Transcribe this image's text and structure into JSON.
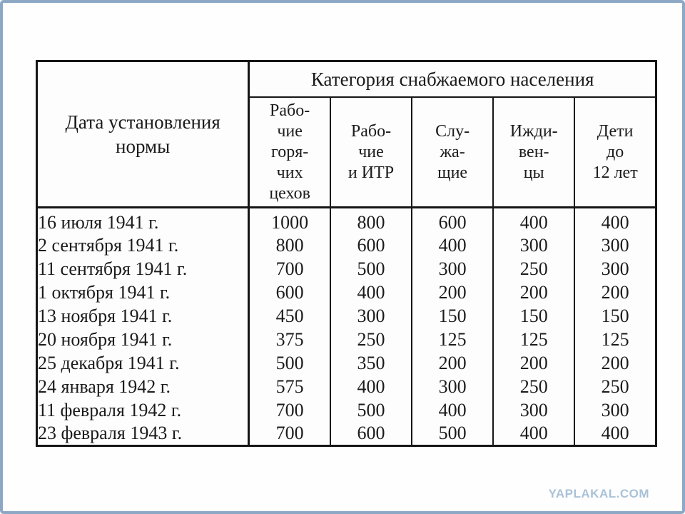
{
  "frame": {
    "border_color": "#8ca8c4",
    "background": "#fefefe"
  },
  "table": {
    "header": {
      "date_col": "Дата установления\nнормы",
      "category_group": "Категория снабжаемого населения",
      "columns": [
        "Рабо-\nчие\nгоря-\nчих\nцехов",
        "Рабо-\nчие\nи ИТР",
        "Слу-\nжа-\nщие",
        "Ижди-\nвен-\nцы",
        "Дети\nдо\n12 лет"
      ]
    },
    "rows": [
      {
        "date": "16 июля 1941 г.",
        "values": [
          "1000",
          "800",
          "600",
          "400",
          "400"
        ]
      },
      {
        "date": "2 сентября 1941 г.",
        "values": [
          "800",
          "600",
          "400",
          "300",
          "300"
        ]
      },
      {
        "date": "11 сентября 1941 г.",
        "values": [
          "700",
          "500",
          "300",
          "250",
          "300"
        ]
      },
      {
        "date": "1 октября 1941 г.",
        "values": [
          "600",
          "400",
          "200",
          "200",
          "200"
        ]
      },
      {
        "date": "13 ноября 1941 г.",
        "values": [
          "450",
          "300",
          "150",
          "150",
          "150"
        ]
      },
      {
        "date": "20 ноября 1941 г.",
        "values": [
          "375",
          "250",
          "125",
          "125",
          "125"
        ]
      },
      {
        "date": "25 декабря 1941 г.",
        "values": [
          "500",
          "350",
          "200",
          "200",
          "200"
        ]
      },
      {
        "date": "24 января 1942 г.",
        "values": [
          "575",
          "400",
          "300",
          "250",
          "250"
        ]
      },
      {
        "date": "11 февраля 1942 г.",
        "values": [
          "700",
          "500",
          "400",
          "300",
          "300"
        ]
      },
      {
        "date": "23 февраля 1943 г.",
        "values": [
          "700",
          "600",
          "500",
          "400",
          "400"
        ]
      }
    ]
  },
  "watermark": {
    "text": "YAPLAKAL.COM",
    "color": "#a9c2d8"
  }
}
